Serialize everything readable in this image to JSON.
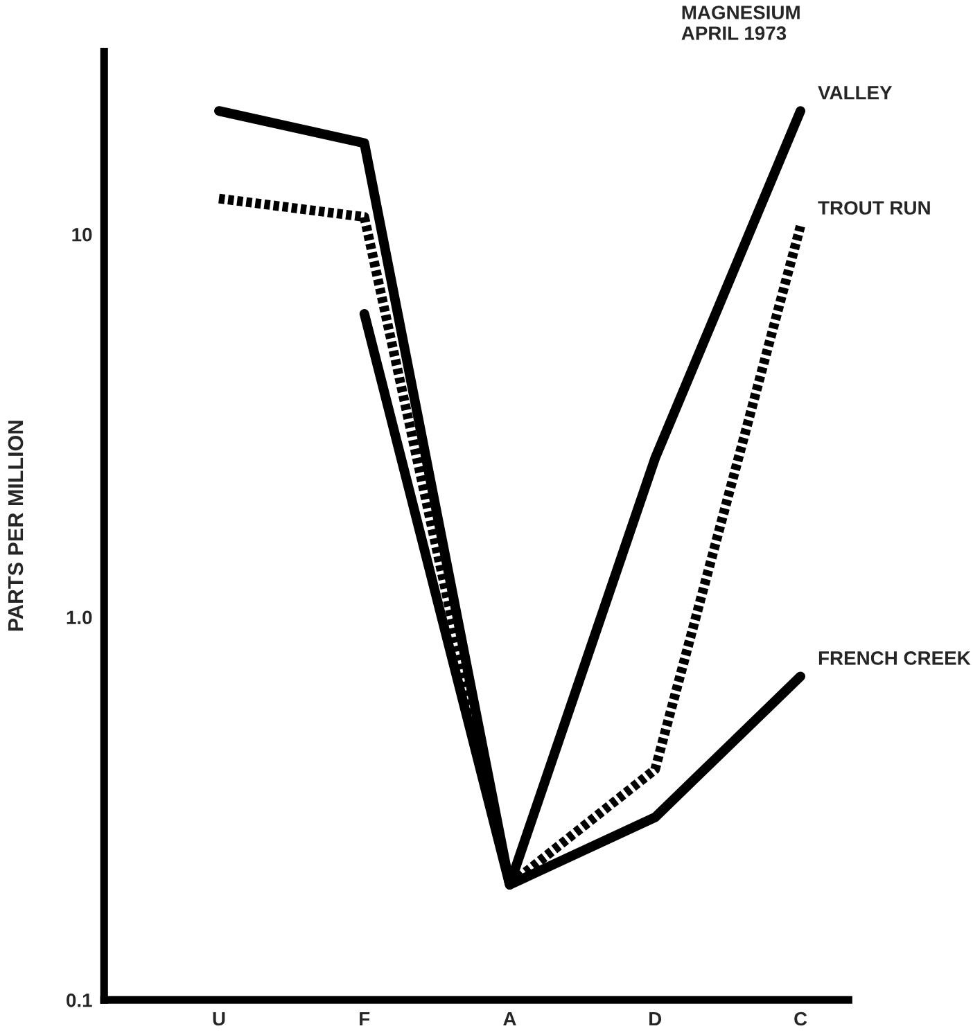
{
  "chart_data": {
    "type": "line",
    "title": "MAGNESIUM\nAPRIL 1973",
    "ylabel": "PARTS PER MILLION",
    "categories": [
      "U",
      "F",
      "A",
      "D",
      "C"
    ],
    "series": [
      {
        "name": "VALLEY",
        "color": "#000000",
        "values": [
          21,
          17.3,
          0.2,
          2.6,
          21
        ],
        "line_style": "solid"
      },
      {
        "name": "TROUT RUN",
        "color": "#000000",
        "values": [
          12.4,
          11.1,
          0.2,
          0.4,
          10.5
        ],
        "line_style": "dashed"
      },
      {
        "name": "FRENCH CREEK",
        "color": "#000000",
        "values": [
          null,
          6.2,
          0.2,
          0.3,
          0.7
        ],
        "line_style": "solid"
      }
    ],
    "log": "y",
    "ylim": [
      0.1,
      30
    ],
    "yticks": [
      {
        "value": 0.1,
        "label": "0.1"
      },
      {
        "value": 1,
        "label": "1.0"
      },
      {
        "value": 10,
        "label": "10"
      }
    ],
    "grid": false,
    "legend": false,
    "marker": "none"
  }
}
